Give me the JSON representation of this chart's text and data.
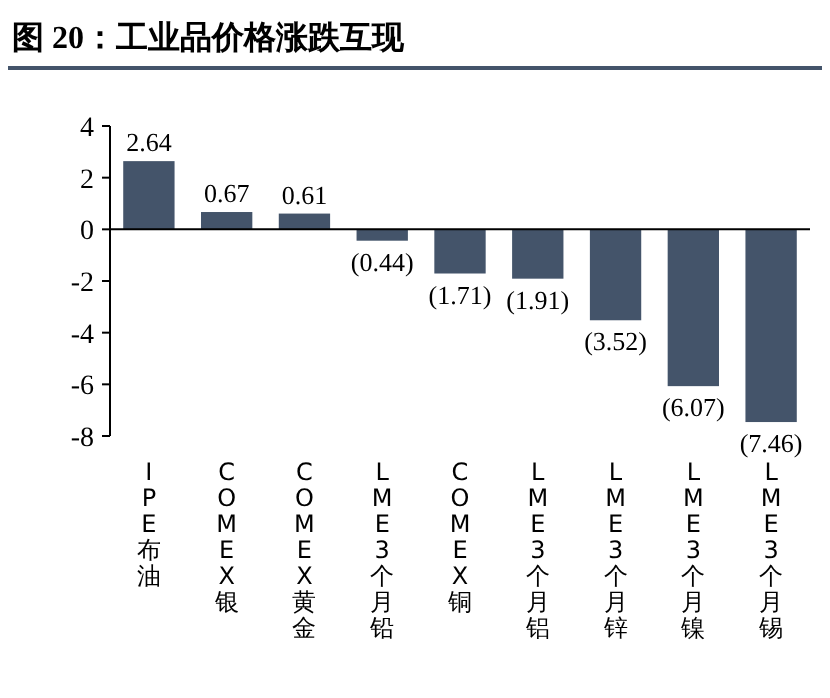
{
  "chart_data": {
    "type": "bar",
    "title": "图 20：工业品价格涨跌互现",
    "categories": [
      "IPE布油",
      "COMEX银",
      "COMEX黄金",
      "LME3个月铅",
      "COMEX铜",
      "LME3个月铝",
      "LME3个月锌",
      "LME3个月镍",
      "LME3个月锡"
    ],
    "values": [
      2.64,
      0.67,
      0.61,
      -0.44,
      -1.71,
      -1.91,
      -3.52,
      -6.07,
      -7.46
    ],
    "value_labels": [
      "2.64",
      "0.67",
      "0.61",
      "(0.44)",
      "(1.71)",
      "(1.91)",
      "(3.52)",
      "(6.07)",
      "(7.46)"
    ],
    "color": "#44546a",
    "ylim": [
      -8,
      4
    ],
    "yticks": [
      -8,
      -6,
      -4,
      -2,
      0,
      2,
      4
    ]
  }
}
